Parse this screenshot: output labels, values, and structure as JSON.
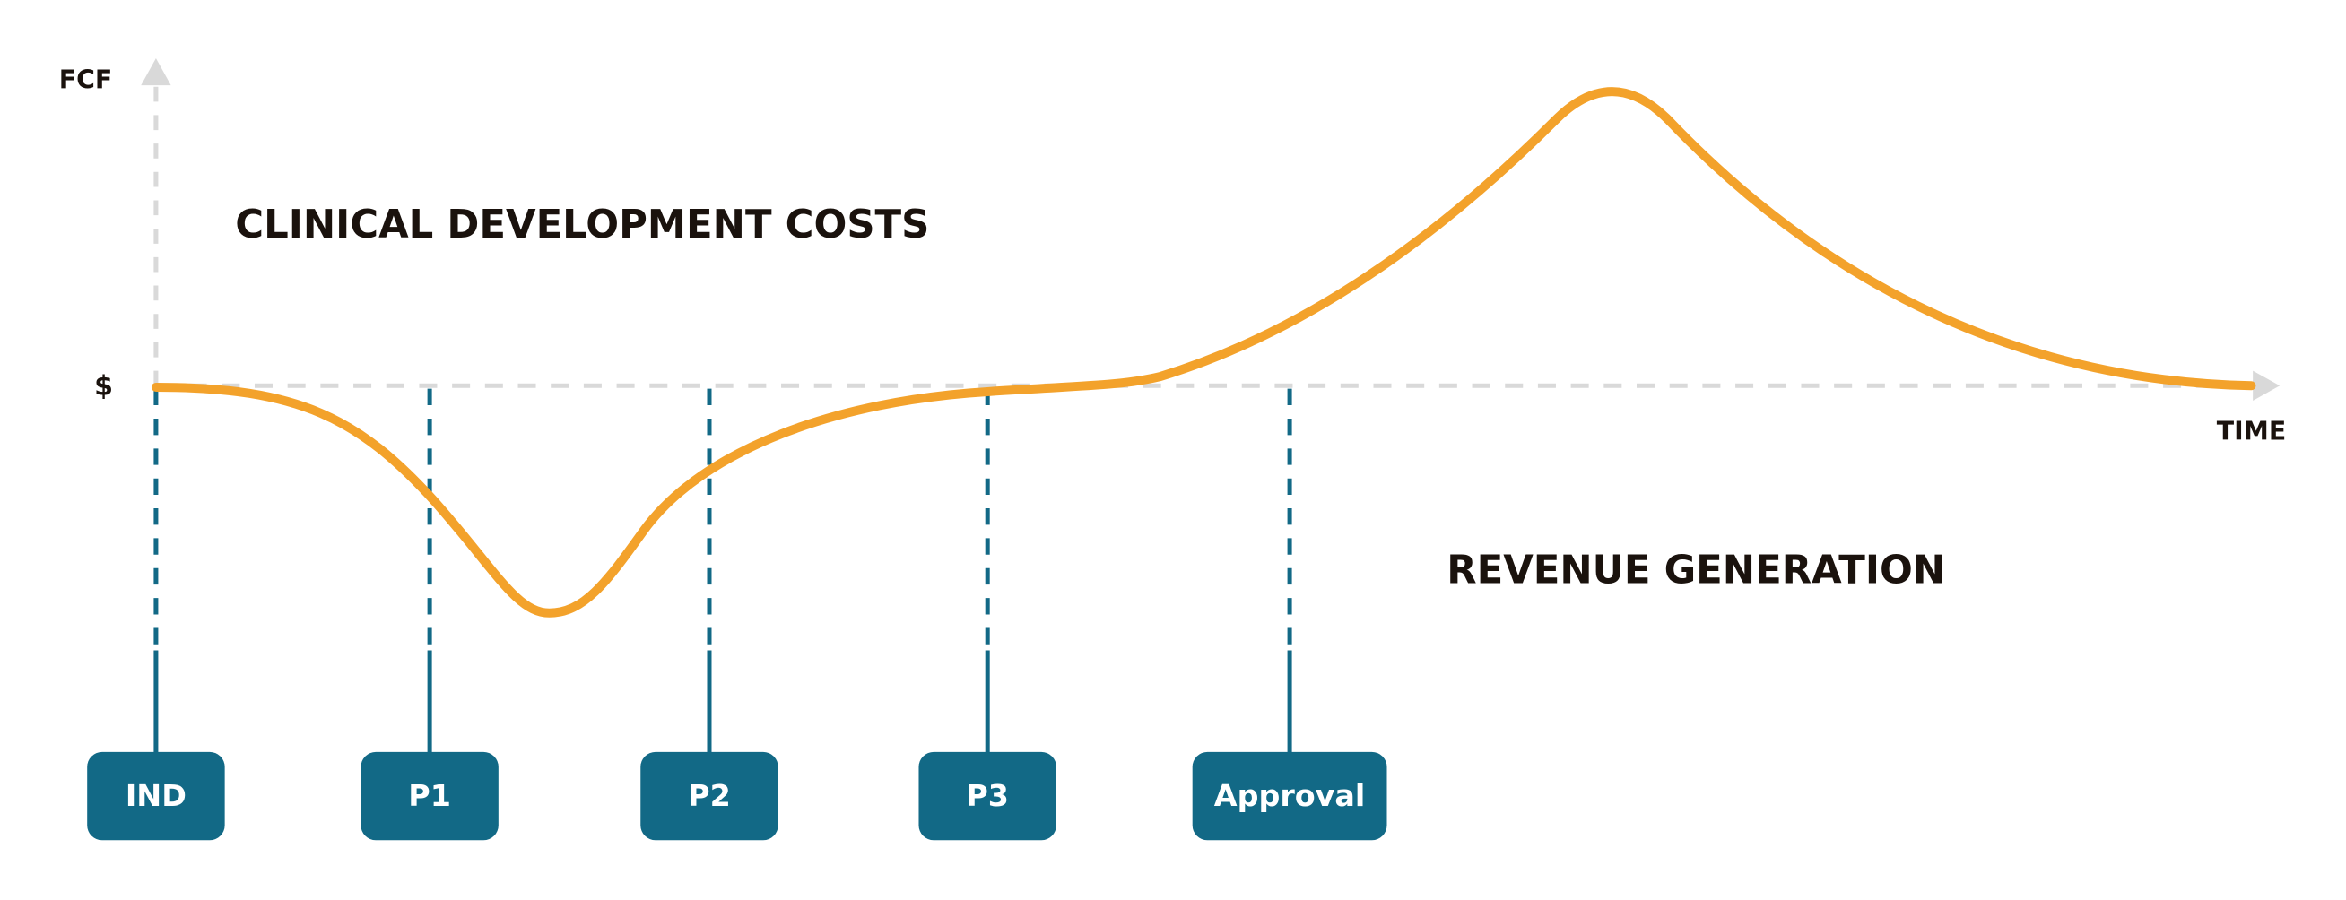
{
  "axis": {
    "y_label": "FCF",
    "y_marker": "$",
    "x_label": "TIME"
  },
  "annotations": [
    "CLINICAL DEVELOPMENT COSTS",
    "REVENUE GENERATION"
  ],
  "milestones": [
    "IND",
    "P1",
    "P2",
    "P3",
    "Approval"
  ]
}
